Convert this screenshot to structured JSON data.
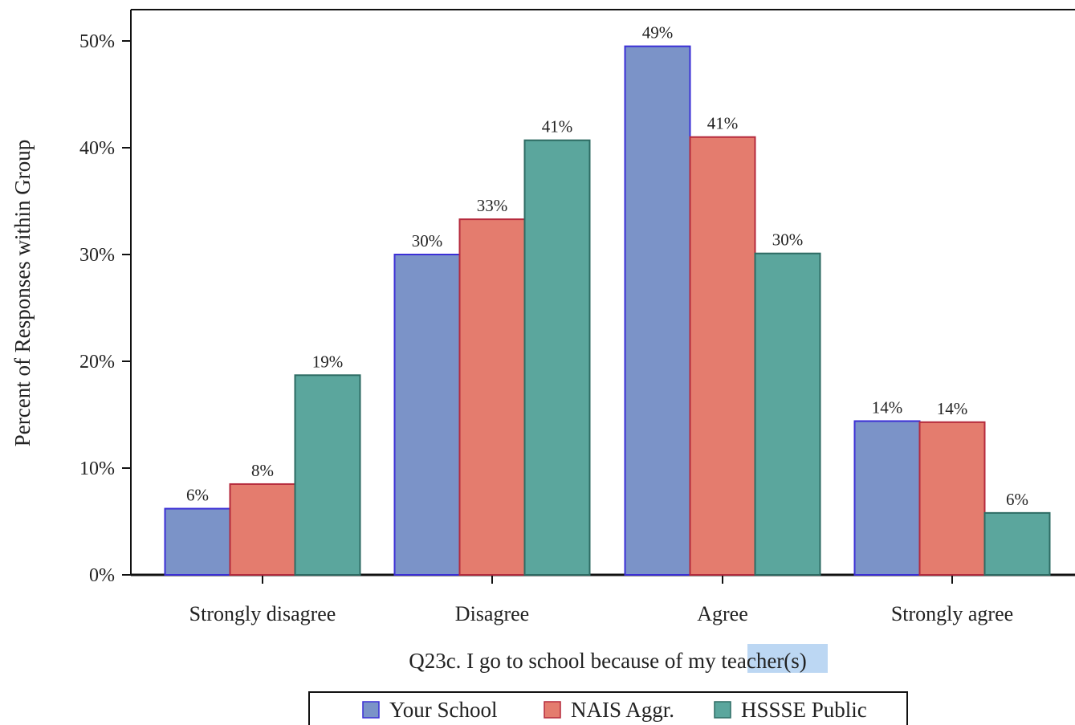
{
  "chart_data": {
    "type": "bar",
    "xlabel_prefix": "Q23c. I go to school because of my ",
    "xlabel_highlight": "teacher",
    "xlabel_suffix": "(s)",
    "ylabel": "Percent of Responses within Group",
    "categories": [
      "Strongly disagree",
      "Disagree",
      "Agree",
      "Strongly agree"
    ],
    "series": [
      {
        "name": "Your School",
        "values": [
          6.2,
          30.0,
          49.5,
          14.4
        ],
        "labels": [
          "6%",
          "30%",
          "49%",
          "14%"
        ]
      },
      {
        "name": "NAIS Aggr.",
        "values": [
          8.5,
          33.3,
          41.0,
          14.3
        ],
        "labels": [
          "8%",
          "33%",
          "41%",
          "14%"
        ]
      },
      {
        "name": "HSSSE Public",
        "values": [
          18.7,
          40.7,
          30.1,
          5.8
        ],
        "labels": [
          "19%",
          "41%",
          "30%",
          "6%"
        ]
      }
    ],
    "yticks": [
      0,
      10,
      20,
      30,
      40,
      50
    ],
    "ytick_labels": [
      "0%",
      "10%",
      "20%",
      "30%",
      "40%",
      "50%"
    ],
    "ylim": [
      0,
      52
    ],
    "legend_position": "bottom",
    "grid": false,
    "colors": {
      "series_fill": [
        "#7b93c8",
        "#e47c6e",
        "#5ba69d"
      ],
      "series_stroke": [
        "#3b2fd6",
        "#b52a3c",
        "#2d6b63"
      ],
      "highlight": "#bcd7f3"
    }
  }
}
